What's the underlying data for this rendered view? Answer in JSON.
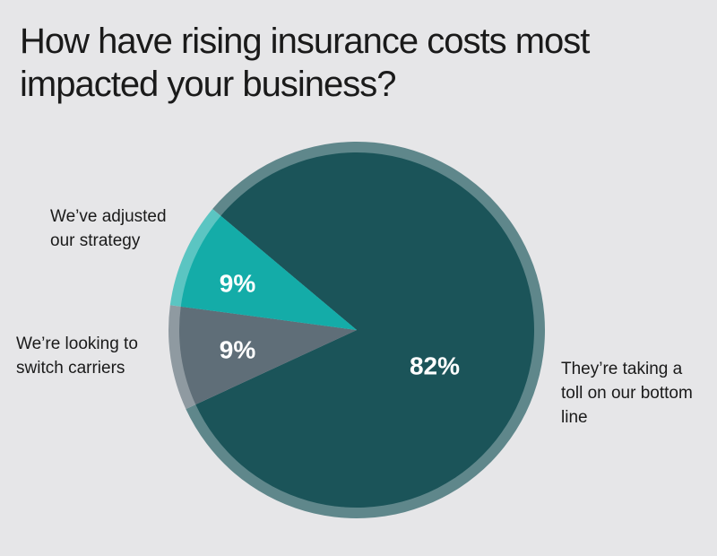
{
  "chart_data": {
    "type": "pie",
    "title": "How have rising insurance costs most impacted your business?",
    "categories": [
      "They’re taking a toll on our bottom line",
      "We’re looking to switch carriers",
      "We’ve adjusted our strategy"
    ],
    "values": [
      82,
      9,
      9
    ],
    "value_labels": [
      "82%",
      "9%",
      "9%"
    ],
    "colors": [
      "#1b5459",
      "#5f6e78",
      "#14aca8"
    ]
  }
}
